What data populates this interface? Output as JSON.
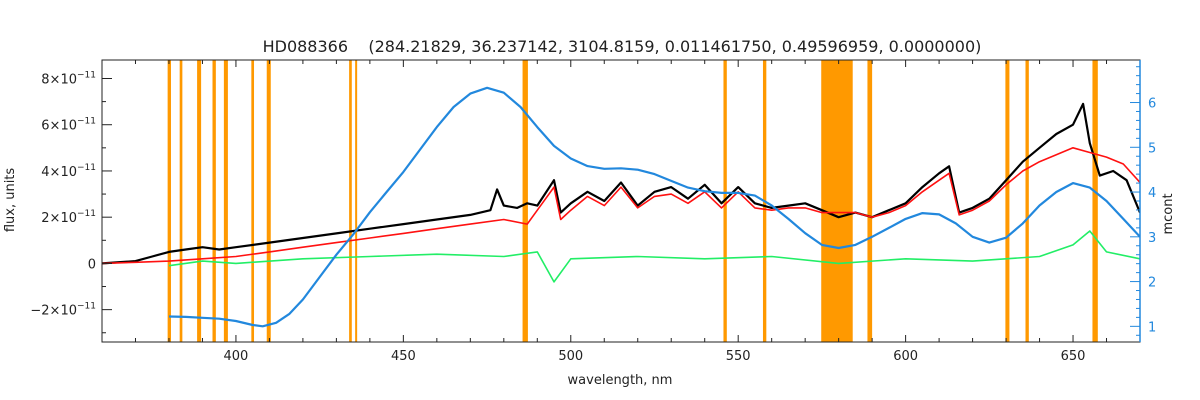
{
  "chart_data": {
    "type": "line",
    "title": "HD088366    (284.21829, 36.237142, 3104.8159, 0.011461750, 0.49596959, 0.0000000)",
    "xlabel": "wavelength, nm",
    "ylabel": "flux, units",
    "y2label": "mcont",
    "xlim": [
      360,
      670
    ],
    "ylim": [
      -3.4e-11,
      8.8e-11
    ],
    "y2lim": [
      0.65,
      6.95
    ],
    "x_ticks": [
      400,
      450,
      500,
      550,
      600,
      650
    ],
    "x_tick_labels": [
      "400",
      "450",
      "500",
      "550",
      "600",
      "650"
    ],
    "y_ticks": [
      -2e-11,
      0,
      2e-11,
      4e-11,
      6e-11,
      8e-11
    ],
    "y_tick_labels": [
      {
        "base": "−2×10",
        "exp": "−11"
      },
      {
        "base": "0",
        "exp": ""
      },
      {
        "base": "2×10",
        "exp": "−11"
      },
      {
        "base": "4×10",
        "exp": "−11"
      },
      {
        "base": "6×10",
        "exp": "−11"
      },
      {
        "base": "8×10",
        "exp": "−11"
      }
    ],
    "y2_ticks": [
      1,
      2,
      3,
      4,
      5,
      6
    ],
    "y2_tick_labels": [
      "1",
      "2",
      "3",
      "4",
      "5",
      "6"
    ],
    "masked_regions": [
      [
        379.6,
        380.6
      ],
      [
        383.2,
        384.0
      ],
      [
        388.4,
        389.6
      ],
      [
        393.0,
        394.0
      ],
      [
        396.4,
        397.6
      ],
      [
        404.6,
        405.4
      ],
      [
        409.2,
        410.4
      ],
      [
        433.8,
        434.6
      ],
      [
        435.6,
        436.2
      ],
      [
        485.6,
        487.2
      ],
      [
        545.6,
        546.6
      ],
      [
        557.4,
        558.4
      ],
      [
        574.8,
        584.2
      ],
      [
        588.6,
        590.0
      ],
      [
        629.8,
        631.0
      ],
      [
        635.8,
        636.8
      ],
      [
        655.8,
        657.4
      ]
    ],
    "colors": {
      "observed": "#000000",
      "model": "#ff1111",
      "model_masked": "#ffdd22",
      "residual": "#22ee66",
      "continuum": "#2288dd",
      "mask": "#ff9900",
      "right_axis": "#2288dd"
    },
    "series": [
      {
        "name": "",
        "role": "observed",
        "x": [
          360,
          370,
          375,
          380,
          385,
          390,
          395,
          400,
          410,
          420,
          430,
          440,
          450,
          460,
          470,
          476,
          478,
          480,
          484,
          487,
          490,
          495,
          497,
          500,
          505,
          510,
          515,
          520,
          525,
          530,
          535,
          540,
          545,
          550,
          555,
          560,
          565,
          570,
          575,
          580,
          585,
          590,
          595,
          600,
          605,
          610,
          613,
          616,
          620,
          625,
          630,
          635,
          640,
          645,
          650,
          653,
          655,
          658,
          662,
          666,
          670
        ],
        "y": [
          0.0,
          1e-12,
          3e-12,
          5e-12,
          6e-12,
          7e-12,
          6e-12,
          7e-12,
          9e-12,
          1.1e-11,
          1.3e-11,
          1.5e-11,
          1.7e-11,
          1.9e-11,
          2.1e-11,
          2.3e-11,
          3.2e-11,
          2.5e-11,
          2.4e-11,
          2.6e-11,
          2.5e-11,
          3.6e-11,
          2.2e-11,
          2.6e-11,
          3.1e-11,
          2.7e-11,
          3.5e-11,
          2.5e-11,
          3.1e-11,
          3.3e-11,
          2.8e-11,
          3.4e-11,
          2.6e-11,
          3.3e-11,
          2.6e-11,
          2.4e-11,
          2.5e-11,
          2.6e-11,
          2.3e-11,
          2e-11,
          2.2e-11,
          2e-11,
          2.3e-11,
          2.6e-11,
          3.3e-11,
          3.9e-11,
          4.2e-11,
          2.2e-11,
          2.4e-11,
          2.8e-11,
          3.6e-11,
          4.4e-11,
          5e-11,
          5.6e-11,
          6e-11,
          6.9e-11,
          5.2e-11,
          3.8e-11,
          4e-11,
          3.6e-11,
          2.2e-11
        ]
      },
      {
        "name": "",
        "role": "model",
        "x": [
          360,
          370,
          380,
          390,
          400,
          410,
          420,
          430,
          440,
          450,
          460,
          470,
          480,
          487,
          490,
          495,
          497,
          500,
          505,
          510,
          515,
          520,
          525,
          530,
          535,
          540,
          545,
          550,
          555,
          560,
          565,
          570,
          575,
          585,
          590,
          595,
          600,
          605,
          610,
          613,
          616,
          620,
          625,
          630,
          635,
          640,
          645,
          650,
          655,
          660,
          665,
          670
        ],
        "y": [
          0.0,
          5e-13,
          1e-12,
          2e-12,
          3e-12,
          5e-12,
          7e-12,
          9e-12,
          1.1e-11,
          1.3e-11,
          1.5e-11,
          1.7e-11,
          1.9e-11,
          1.7e-11,
          2.3e-11,
          3.3e-11,
          1.9e-11,
          2.3e-11,
          2.9e-11,
          2.5e-11,
          3.3e-11,
          2.4e-11,
          2.9e-11,
          3e-11,
          2.6e-11,
          3.1e-11,
          2.4e-11,
          3.1e-11,
          2.4e-11,
          2.3e-11,
          2.4e-11,
          2.4e-11,
          2.2e-11,
          2.2e-11,
          2e-11,
          2.2e-11,
          2.5e-11,
          3.1e-11,
          3.6e-11,
          3.9e-11,
          2.1e-11,
          2.3e-11,
          2.7e-11,
          3.4e-11,
          4e-11,
          4.4e-11,
          4.7e-11,
          5e-11,
          4.8e-11,
          4.6e-11,
          4.3e-11,
          3.5e-11
        ]
      },
      {
        "name": "",
        "role": "residual",
        "x": [
          380,
          390,
          400,
          420,
          440,
          460,
          480,
          490,
          495,
          500,
          520,
          540,
          560,
          580,
          600,
          620,
          640,
          650,
          655,
          660,
          670
        ],
        "y": [
          -1e-12,
          1e-12,
          0.0,
          2e-12,
          3e-12,
          4e-12,
          3e-12,
          5e-12,
          -8e-12,
          2e-12,
          3e-12,
          2e-12,
          3e-12,
          0.0,
          2e-12,
          1e-12,
          3e-12,
          8e-12,
          1.4e-11,
          5e-12,
          2e-12
        ]
      },
      {
        "name": "",
        "role": "continuum",
        "axis": "right",
        "x": [
          380,
          385,
          390,
          395,
          400,
          405,
          408,
          412,
          416,
          420,
          425,
          430,
          435,
          440,
          445,
          450,
          455,
          460,
          465,
          470,
          475,
          480,
          485,
          490,
          495,
          500,
          505,
          510,
          515,
          520,
          525,
          530,
          535,
          540,
          545,
          550,
          555,
          560,
          565,
          570,
          575,
          580,
          585,
          590,
          595,
          600,
          605,
          610,
          615,
          620,
          625,
          630,
          635,
          640,
          645,
          650,
          655,
          660,
          665,
          670
        ],
        "y": [
          1.22,
          1.21,
          1.19,
          1.17,
          1.12,
          1.03,
          1.0,
          1.08,
          1.28,
          1.6,
          2.1,
          2.6,
          3.05,
          3.55,
          4.0,
          4.45,
          4.95,
          5.45,
          5.9,
          6.2,
          6.33,
          6.22,
          5.9,
          5.45,
          5.03,
          4.75,
          4.58,
          4.52,
          4.53,
          4.5,
          4.4,
          4.25,
          4.1,
          4.02,
          3.98,
          3.98,
          3.92,
          3.7,
          3.4,
          3.08,
          2.82,
          2.75,
          2.82,
          3.0,
          3.2,
          3.4,
          3.53,
          3.5,
          3.3,
          3.0,
          2.87,
          2.98,
          3.3,
          3.7,
          4.0,
          4.2,
          4.1,
          3.8,
          3.4,
          3.0
        ]
      }
    ],
    "legend": "none",
    "grid": false
  }
}
